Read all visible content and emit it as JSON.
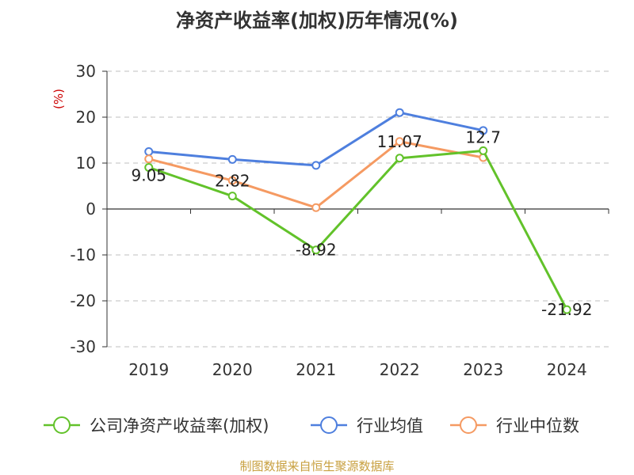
{
  "chart_data": {
    "type": "line",
    "title": "净资产收益率(加权)历年情况(%)",
    "ylabel": "(%)",
    "categories": [
      "2019",
      "2020",
      "2021",
      "2022",
      "2023",
      "2024"
    ],
    "ylim": [
      -30,
      30
    ],
    "yticks": [
      "30",
      "20",
      "10",
      "0",
      "-10",
      "-20",
      "-30"
    ],
    "grid": true,
    "legend_position": "bottom",
    "series": [
      {
        "name": "公司净资产收益率(加权)",
        "color": "#62c22a",
        "values": [
          9.05,
          2.82,
          -8.92,
          11.07,
          12.7,
          -21.92
        ],
        "labels": [
          "9.05",
          "2.82",
          "-8.92",
          "11.07",
          "12.7",
          "-21.92"
        ]
      },
      {
        "name": "行业均值",
        "color": "#4e7fde",
        "values": [
          12.5,
          10.8,
          9.5,
          21.0,
          17.1,
          null
        ]
      },
      {
        "name": "行业中位数",
        "color": "#f59a62",
        "values": [
          10.9,
          6.2,
          0.3,
          14.7,
          11.2,
          null
        ]
      }
    ]
  },
  "source": "制图数据来自恒生聚源数据库"
}
